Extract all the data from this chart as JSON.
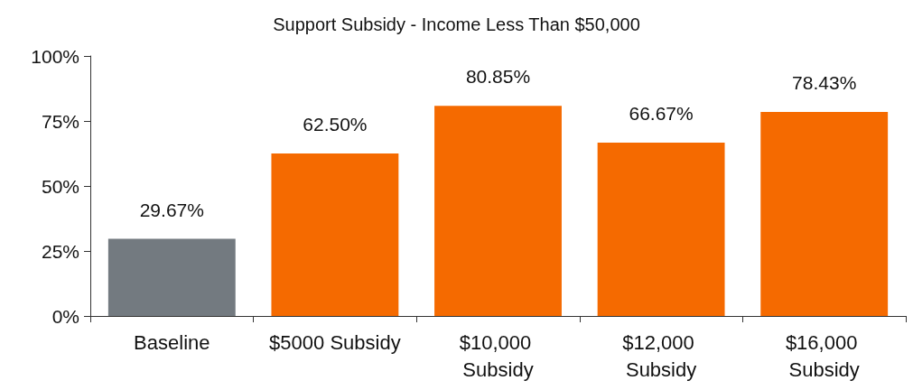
{
  "chart_data": {
    "type": "bar",
    "title": "Support Subsidy - Income Less Than $50,000",
    "categories": [
      "Baseline",
      "$5000 Subsidy",
      "$10,000 Subsidy",
      "$12,000 Subsidy",
      "$16,000 Subsidy"
    ],
    "values": [
      29.67,
      62.5,
      80.85,
      66.67,
      78.43
    ],
    "value_labels": [
      "29.67%",
      "62.50%",
      "80.85%",
      "66.67%",
      "78.43%"
    ],
    "colors": [
      "#737a80",
      "#f56a00",
      "#f56a00",
      "#f56a00",
      "#f56a00"
    ],
    "ylim": [
      0,
      100
    ],
    "yticks": [
      {
        "value": 0,
        "label": "0%"
      },
      {
        "value": 25,
        "label": "25%"
      },
      {
        "value": 50,
        "label": "50%"
      },
      {
        "value": 75,
        "label": "75%"
      },
      {
        "value": 100,
        "label": "100%"
      }
    ],
    "grid": false
  }
}
